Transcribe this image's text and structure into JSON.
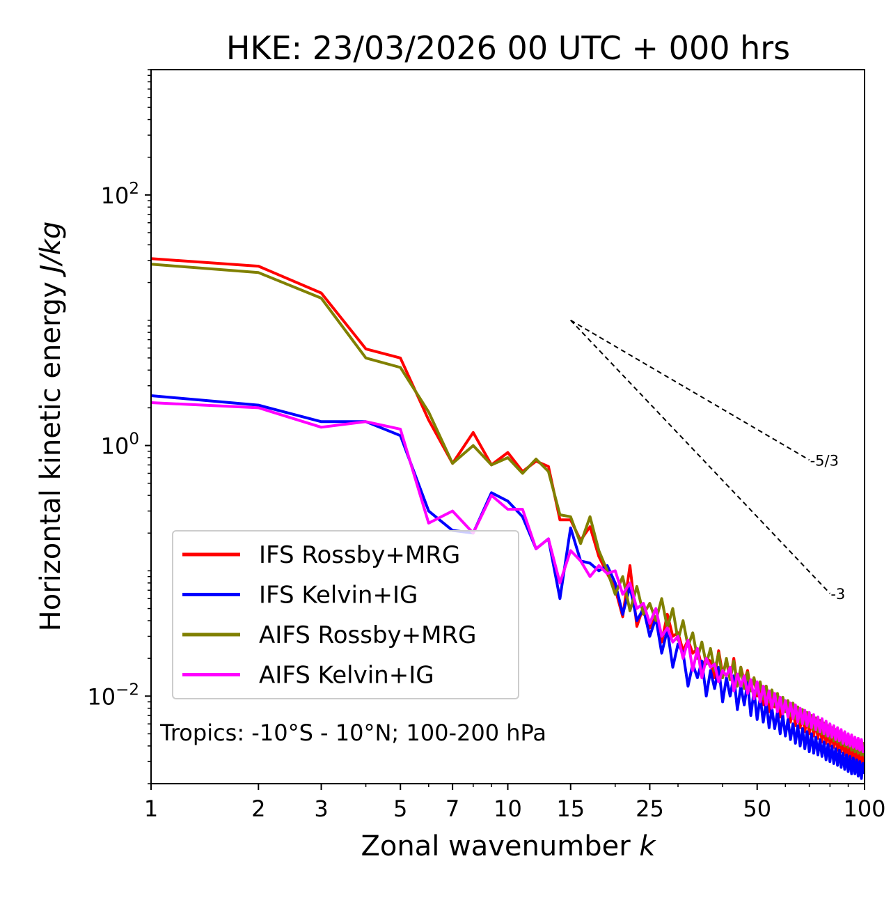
{
  "chart_data": {
    "type": "line",
    "title": "HKE: 23/03/2026 00 UTC + 000 hrs",
    "xlabel": "Zonal wavenumber",
    "xlabel_italic": "k",
    "ylabel": "Horizontal kinetic energy",
    "ylabel_italic": "J/kg",
    "xscale": "log",
    "yscale": "log",
    "xlim": [
      1,
      100
    ],
    "ylim": [
      0.002,
      1000
    ],
    "x_ticks": [
      {
        "value": 1,
        "label": "1"
      },
      {
        "value": 2,
        "label": "2"
      },
      {
        "value": 3,
        "label": "3"
      },
      {
        "value": 5,
        "label": "5"
      },
      {
        "value": 7,
        "label": "7"
      },
      {
        "value": 10,
        "label": "10"
      },
      {
        "value": 15,
        "label": "15"
      },
      {
        "value": 25,
        "label": "25"
      },
      {
        "value": 50,
        "label": "50"
      },
      {
        "value": 100,
        "label": "100"
      }
    ],
    "y_ticks": [
      {
        "value": 100,
        "base": "10",
        "exp": "2"
      },
      {
        "value": 1,
        "base": "10",
        "exp": "0"
      },
      {
        "value": 0.01,
        "base": "10",
        "exp": "−2"
      }
    ],
    "annotation": "Tropics: -10°S - 10°N; 100-200 hPa",
    "legend_position": "lower-left",
    "reference_lines": [
      {
        "label": "-5/3",
        "slope": -1.6667,
        "x_start": 15,
        "y_start": 10,
        "x_end": 70
      },
      {
        "label": "-3",
        "slope": -3,
        "x_start": 15,
        "y_start": 10,
        "x_end": 80
      }
    ],
    "series": [
      {
        "name": "IFS Rossby+MRG",
        "color": "#ff0000",
        "x": [
          1,
          2,
          3,
          4,
          5,
          6,
          7,
          8,
          9,
          10,
          11,
          12,
          13,
          14,
          15,
          16,
          17,
          18,
          19,
          20,
          21,
          22,
          23,
          24,
          25,
          26,
          27,
          28,
          29,
          30,
          31,
          32,
          33,
          34,
          35,
          36,
          37,
          38,
          39,
          40,
          41,
          42,
          43,
          44,
          45,
          46,
          47,
          48,
          49,
          50,
          51,
          52,
          53,
          54,
          55,
          56,
          57,
          58,
          59,
          60,
          61,
          62,
          63,
          64,
          65,
          66,
          67,
          68,
          69,
          70,
          71,
          72,
          73,
          74,
          75,
          76,
          77,
          78,
          79,
          80,
          81,
          82,
          83,
          84,
          85,
          86,
          87,
          88,
          89,
          90,
          91,
          92,
          93,
          94,
          95,
          96,
          97,
          98,
          99,
          100
        ],
        "y": [
          31,
          27,
          16.5,
          5.9,
          5.0,
          1.6,
          0.72,
          1.27,
          0.7,
          0.88,
          0.62,
          0.75,
          0.68,
          0.255,
          0.255,
          0.175,
          0.225,
          0.13,
          0.095,
          0.072,
          0.043,
          0.11,
          0.036,
          0.052,
          0.035,
          0.043,
          0.027,
          0.045,
          0.03,
          0.032,
          0.023,
          0.028,
          0.022,
          0.024,
          0.017,
          0.02,
          0.019,
          0.014,
          0.023,
          0.015,
          0.019,
          0.0135,
          0.02,
          0.012,
          0.017,
          0.013,
          0.016,
          0.011,
          0.014,
          0.01,
          0.0125,
          0.0085,
          0.012,
          0.0075,
          0.0105,
          0.0082,
          0.01,
          0.0068,
          0.0092,
          0.0075,
          0.0085,
          0.0062,
          0.0082,
          0.0058,
          0.0078,
          0.0056,
          0.0072,
          0.0052,
          0.0068,
          0.005,
          0.0066,
          0.0048,
          0.0062,
          0.0046,
          0.006,
          0.0043,
          0.0056,
          0.0042,
          0.0054,
          0.004,
          0.0052,
          0.0039,
          0.005,
          0.0037,
          0.0048,
          0.0036,
          0.0046,
          0.0034,
          0.0044,
          0.0033,
          0.0042,
          0.0032,
          0.004,
          0.003,
          0.0038,
          0.0029,
          0.0036,
          0.0028,
          0.0035,
          0.0024
        ]
      },
      {
        "name": "IFS Kelvin+IG",
        "color": "#0000ff",
        "x": [
          1,
          2,
          3,
          4,
          5,
          6,
          7,
          8,
          9,
          10,
          11,
          12,
          13,
          14,
          15,
          16,
          17,
          18,
          19,
          20,
          21,
          22,
          23,
          24,
          25,
          26,
          27,
          28,
          29,
          30,
          31,
          32,
          33,
          34,
          35,
          36,
          37,
          38,
          39,
          40,
          41,
          42,
          43,
          44,
          45,
          46,
          47,
          48,
          49,
          50,
          51,
          52,
          53,
          54,
          55,
          56,
          57,
          58,
          59,
          60,
          61,
          62,
          63,
          64,
          65,
          66,
          67,
          68,
          69,
          70,
          71,
          72,
          73,
          74,
          75,
          76,
          77,
          78,
          79,
          80,
          81,
          82,
          83,
          84,
          85,
          86,
          87,
          88,
          89,
          90,
          91,
          92,
          93,
          94,
          95,
          96,
          97,
          98,
          99,
          100
        ],
        "y": [
          2.5,
          2.1,
          1.55,
          1.55,
          1.2,
          0.3,
          0.21,
          0.2,
          0.42,
          0.36,
          0.27,
          0.15,
          0.18,
          0.06,
          0.22,
          0.12,
          0.115,
          0.1,
          0.11,
          0.08,
          0.045,
          0.075,
          0.04,
          0.05,
          0.03,
          0.042,
          0.022,
          0.034,
          0.017,
          0.026,
          0.022,
          0.012,
          0.018,
          0.014,
          0.019,
          0.01,
          0.016,
          0.0115,
          0.017,
          0.009,
          0.014,
          0.01,
          0.0145,
          0.0078,
          0.012,
          0.0085,
          0.013,
          0.007,
          0.011,
          0.0065,
          0.0098,
          0.0062,
          0.009,
          0.0056,
          0.008,
          0.0055,
          0.0075,
          0.005,
          0.007,
          0.0048,
          0.0065,
          0.0045,
          0.006,
          0.0042,
          0.0058,
          0.004,
          0.0055,
          0.0038,
          0.0052,
          0.0036,
          0.005,
          0.0035,
          0.0047,
          0.0034,
          0.0045,
          0.0033,
          0.0043,
          0.0031,
          0.0041,
          0.003,
          0.004,
          0.0029,
          0.0038,
          0.0028,
          0.0037,
          0.0027,
          0.0035,
          0.0026,
          0.0034,
          0.0025,
          0.0033,
          0.0024,
          0.0032,
          0.0024,
          0.0031,
          0.0023,
          0.003,
          0.0022,
          0.0029,
          0.0024
        ]
      },
      {
        "name": "AIFS Rossby+MRG",
        "color": "#808000",
        "x": [
          1,
          2,
          3,
          4,
          5,
          6,
          7,
          8,
          9,
          10,
          11,
          12,
          13,
          14,
          15,
          16,
          17,
          18,
          19,
          20,
          21,
          22,
          23,
          24,
          25,
          26,
          27,
          28,
          29,
          30,
          31,
          32,
          33,
          34,
          35,
          36,
          37,
          38,
          39,
          40,
          41,
          42,
          43,
          44,
          45,
          46,
          47,
          48,
          49,
          50,
          51,
          52,
          53,
          54,
          55,
          56,
          57,
          58,
          59,
          60,
          61,
          62,
          63,
          64,
          65,
          66,
          67,
          68,
          69,
          70,
          71,
          72,
          73,
          74,
          75,
          76,
          77,
          78,
          79,
          80,
          81,
          82,
          83,
          84,
          85,
          86,
          87,
          88,
          89,
          90,
          91,
          92,
          93,
          94,
          95,
          96,
          97,
          98,
          99,
          100
        ],
        "y": [
          28,
          24,
          15,
          5.0,
          4.2,
          1.85,
          0.72,
          1.0,
          0.7,
          0.8,
          0.6,
          0.78,
          0.62,
          0.28,
          0.27,
          0.165,
          0.27,
          0.145,
          0.1,
          0.065,
          0.09,
          0.048,
          0.075,
          0.045,
          0.055,
          0.04,
          0.06,
          0.035,
          0.05,
          0.028,
          0.04,
          0.025,
          0.032,
          0.02,
          0.027,
          0.018,
          0.024,
          0.016,
          0.022,
          0.014,
          0.02,
          0.0135,
          0.019,
          0.012,
          0.017,
          0.0115,
          0.0155,
          0.011,
          0.014,
          0.0105,
          0.013,
          0.0095,
          0.012,
          0.009,
          0.0112,
          0.0085,
          0.0105,
          0.008,
          0.0098,
          0.0075,
          0.0092,
          0.007,
          0.0088,
          0.0066,
          0.0082,
          0.0062,
          0.0078,
          0.006,
          0.0074,
          0.0057,
          0.007,
          0.0054,
          0.0067,
          0.0052,
          0.0064,
          0.005,
          0.0061,
          0.0048,
          0.0058,
          0.0046,
          0.0056,
          0.0044,
          0.0054,
          0.0043,
          0.0052,
          0.0041,
          0.005,
          0.004,
          0.0048,
          0.0039,
          0.0047,
          0.0037,
          0.0045,
          0.0036,
          0.0044,
          0.0035,
          0.0043,
          0.0034,
          0.0042,
          0.0033
        ]
      },
      {
        "name": "AIFS Kelvin+IG",
        "color": "#ff00ff",
        "x": [
          1,
          2,
          3,
          4,
          5,
          6,
          7,
          8,
          9,
          10,
          11,
          12,
          13,
          14,
          15,
          16,
          17,
          18,
          19,
          20,
          21,
          22,
          23,
          24,
          25,
          26,
          27,
          28,
          29,
          30,
          31,
          32,
          33,
          34,
          35,
          36,
          37,
          38,
          39,
          40,
          41,
          42,
          43,
          44,
          45,
          46,
          47,
          48,
          49,
          50,
          51,
          52,
          53,
          54,
          55,
          56,
          57,
          58,
          59,
          60,
          61,
          62,
          63,
          64,
          65,
          66,
          67,
          68,
          69,
          70,
          71,
          72,
          73,
          74,
          75,
          76,
          77,
          78,
          79,
          80,
          81,
          82,
          83,
          84,
          85,
          86,
          87,
          88,
          89,
          90,
          91,
          92,
          93,
          94,
          95,
          96,
          97,
          98,
          99,
          100
        ],
        "y": [
          2.2,
          2.0,
          1.4,
          1.55,
          1.35,
          0.24,
          0.3,
          0.2,
          0.4,
          0.31,
          0.31,
          0.15,
          0.18,
          0.08,
          0.145,
          0.12,
          0.09,
          0.11,
          0.095,
          0.1,
          0.065,
          0.08,
          0.05,
          0.055,
          0.038,
          0.05,
          0.03,
          0.035,
          0.027,
          0.03,
          0.02,
          0.028,
          0.016,
          0.024,
          0.014,
          0.02,
          0.017,
          0.018,
          0.013,
          0.016,
          0.0145,
          0.017,
          0.011,
          0.015,
          0.012,
          0.0145,
          0.0105,
          0.0135,
          0.0095,
          0.013,
          0.009,
          0.012,
          0.0085,
          0.011,
          0.008,
          0.0105,
          0.0075,
          0.0098,
          0.0072,
          0.0092,
          0.0068,
          0.0088,
          0.0066,
          0.0085,
          0.0062,
          0.008,
          0.006,
          0.0077,
          0.0058,
          0.0074,
          0.0056,
          0.0071,
          0.0054,
          0.0068,
          0.0052,
          0.0066,
          0.005,
          0.0063,
          0.0048,
          0.006,
          0.0047,
          0.0058,
          0.0045,
          0.0056,
          0.0044,
          0.0054,
          0.0042,
          0.0052,
          0.0041,
          0.005,
          0.004,
          0.0049,
          0.0039,
          0.0047,
          0.0038,
          0.0046,
          0.0037,
          0.0045,
          0.0036,
          0.0038
        ]
      }
    ]
  }
}
